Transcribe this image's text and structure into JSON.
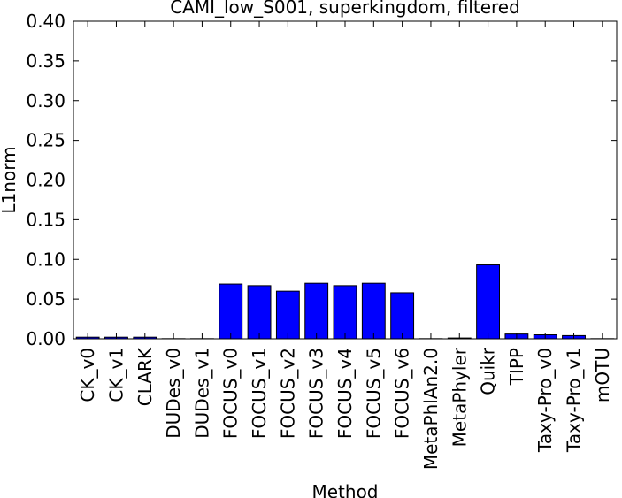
{
  "chart_data": {
    "type": "bar",
    "title": "CAMI_low_S001, superkingdom, filtered",
    "xlabel": "Method",
    "ylabel": "L1norm",
    "ylim": [
      0,
      0.4
    ],
    "yticks": [
      0.0,
      0.05,
      0.1,
      0.15,
      0.2,
      0.25,
      0.3,
      0.35,
      0.4
    ],
    "ytick_labels": [
      "0.00",
      "0.05",
      "0.10",
      "0.15",
      "0.20",
      "0.25",
      "0.30",
      "0.35",
      "0.40"
    ],
    "grid": false,
    "bar_color": "#0000ff",
    "categories": [
      "CK_v0",
      "CK_v1",
      "CLARK",
      "DUDes_v0",
      "DUDes_v1",
      "FOCUS_v0",
      "FOCUS_v1",
      "FOCUS_v2",
      "FOCUS_v3",
      "FOCUS_v4",
      "FOCUS_v5",
      "FOCUS_v6",
      "MetaPhlAn2.0",
      "MetaPhyler",
      "Quikr",
      "TIPP",
      "Taxy-Pro_v0",
      "Taxy-Pro_v1",
      "mOTU"
    ],
    "values": [
      0.002,
      0.002,
      0.002,
      0.0002,
      0.0002,
      0.069,
      0.067,
      0.06,
      0.07,
      0.067,
      0.07,
      0.058,
      0.0002,
      0.001,
      0.093,
      0.006,
      0.005,
      0.004,
      0.0002
    ]
  }
}
